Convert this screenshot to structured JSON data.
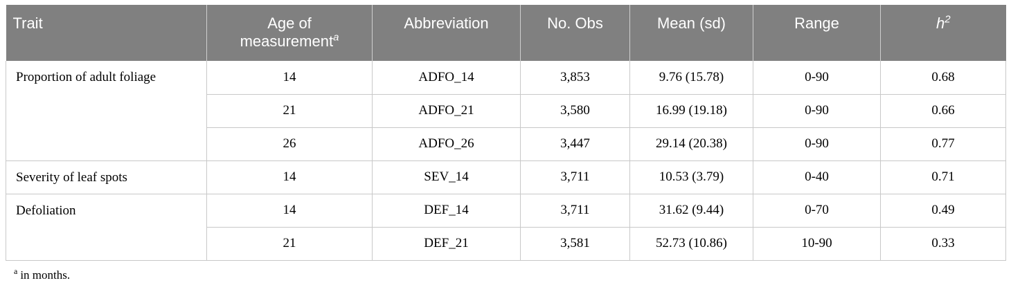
{
  "table": {
    "headers": {
      "trait": "Trait",
      "age_line1": "Age of",
      "age_line2": "measurement",
      "age_mark": "a",
      "abbreviation": "Abbreviation",
      "no_obs": "No. Obs",
      "mean_sd": "Mean (sd)",
      "range": "Range",
      "h2_base": "h",
      "h2_exp": "2"
    },
    "groups": [
      {
        "trait": "Proportion of adult foliage",
        "rows": [
          {
            "age": "14",
            "abbr": "ADFO_14",
            "obs": "3,853",
            "mean": "9.76 (15.78)",
            "range": "0-90",
            "h2": "0.68"
          },
          {
            "age": "21",
            "abbr": "ADFO_21",
            "obs": "3,580",
            "mean": "16.99 (19.18)",
            "range": "0-90",
            "h2": "0.66"
          },
          {
            "age": "26",
            "abbr": "ADFO_26",
            "obs": "3,447",
            "mean": "29.14 (20.38)",
            "range": "0-90",
            "h2": "0.77"
          }
        ]
      },
      {
        "trait": "Severity of leaf spots",
        "rows": [
          {
            "age": "14",
            "abbr": "SEV_14",
            "obs": "3,711",
            "mean": "10.53 (3.79)",
            "range": "0-40",
            "h2": "0.71"
          }
        ]
      },
      {
        "trait": "Defoliation",
        "rows": [
          {
            "age": "14",
            "abbr": "DEF_14",
            "obs": "3,711",
            "mean": "31.62 (9.44)",
            "range": "0-70",
            "h2": "0.49"
          },
          {
            "age": "21",
            "abbr": "DEF_21",
            "obs": "3,581",
            "mean": "52.73 (10.86)",
            "range": "10-90",
            "h2": "0.33"
          }
        ]
      }
    ]
  },
  "footnote": {
    "mark": "a",
    "text": "in months."
  },
  "colors": {
    "header_bg": "#808080",
    "header_text": "#ffffff",
    "grid_line": "#c8c8c8"
  }
}
